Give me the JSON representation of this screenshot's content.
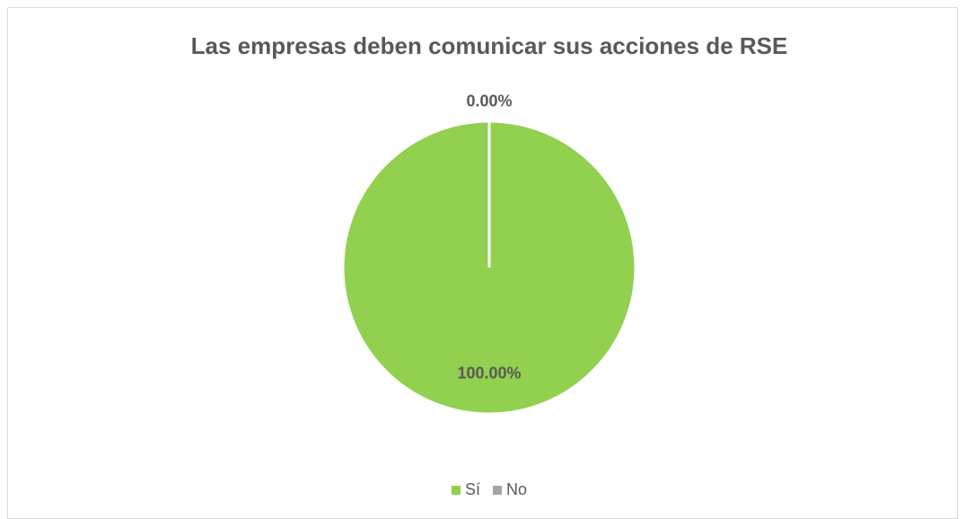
{
  "chart_data": {
    "type": "pie",
    "title": "Las empresas deben comunicar sus acciones de RSE",
    "categories": [
      "Sí",
      "No"
    ],
    "values": [
      100,
      0
    ],
    "value_labels": [
      "100.00%",
      "0.00%"
    ],
    "colors": [
      "#92d050",
      "#a5a5a5"
    ],
    "legend": "bottom"
  }
}
